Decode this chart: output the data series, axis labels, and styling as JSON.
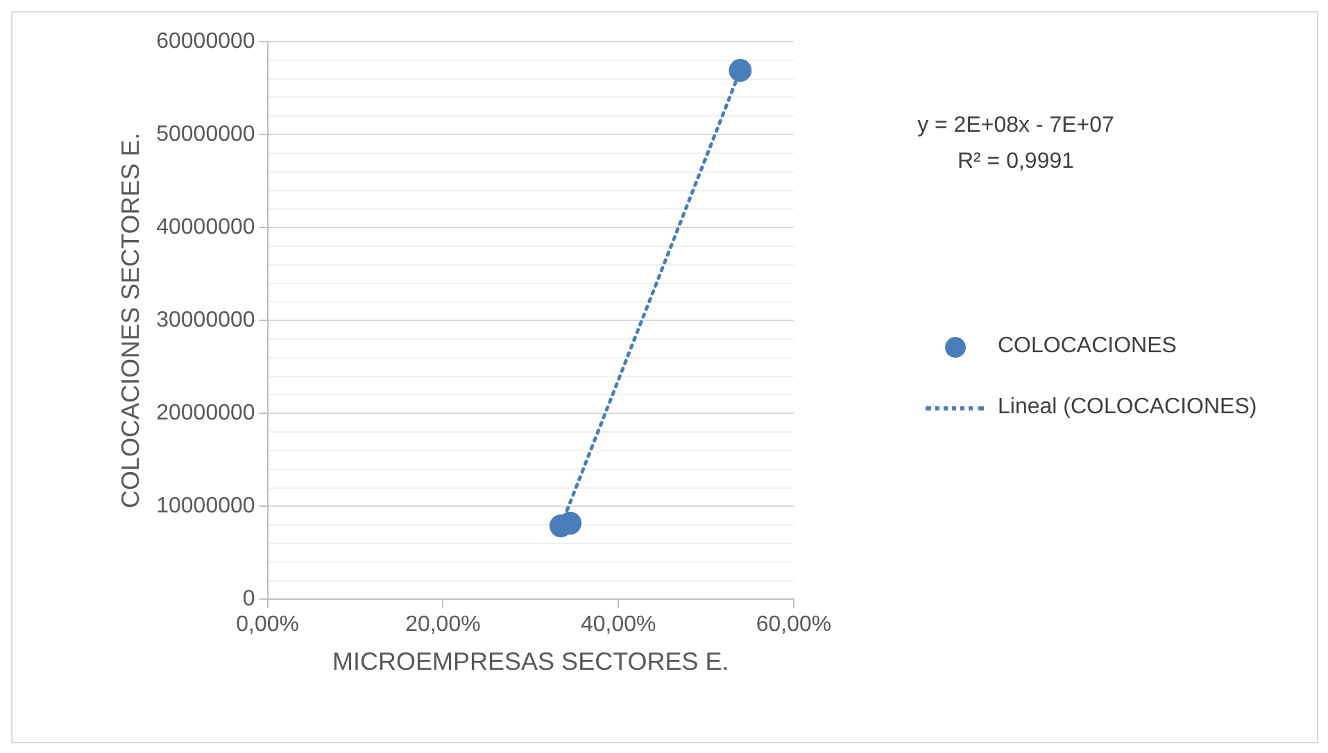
{
  "chart_data": {
    "type": "scatter",
    "xlabel": "MICROEMPRESAS SECTORES E.",
    "ylabel": "COLOCACIONES SECTORES E.",
    "annotations": [
      "y = 2E+08x - 7E+07",
      "R² = 0,9991"
    ],
    "xlim": [
      0,
      0.6
    ],
    "xticks": [
      {
        "value": 0,
        "label": "0,00%"
      },
      {
        "value": 0.2,
        "label": "20,00%"
      },
      {
        "value": 0.4,
        "label": "40,00%"
      },
      {
        "value": 0.6,
        "label": "60,00%"
      }
    ],
    "ylim": [
      0,
      60000000
    ],
    "yticks": [
      0,
      {
        "value": 2000000,
        "label": null
      },
      {
        "value": 4000000,
        "label": null
      },
      {
        "value": 6000000,
        "label": null
      },
      {
        "value": 8000000,
        "label": null
      },
      10000000,
      {
        "value": 12000000,
        "label": null
      },
      {
        "value": 14000000,
        "label": null
      },
      {
        "value": 16000000,
        "label": null
      },
      {
        "value": 18000000,
        "label": null
      },
      20000000,
      {
        "value": 22000000,
        "label": null
      },
      {
        "value": 24000000,
        "label": null
      },
      {
        "value": 26000000,
        "label": null
      },
      {
        "value": 28000000,
        "label": null
      },
      30000000,
      {
        "value": 32000000,
        "label": null
      },
      {
        "value": 34000000,
        "label": null
      },
      {
        "value": 36000000,
        "label": null
      },
      {
        "value": 38000000,
        "label": null
      },
      40000000,
      {
        "value": 42000000,
        "label": null
      },
      {
        "value": 44000000,
        "label": null
      },
      {
        "value": 46000000,
        "label": null
      },
      {
        "value": 48000000,
        "label": null
      },
      50000000,
      {
        "value": 52000000,
        "label": null
      },
      {
        "value": 54000000,
        "label": null
      },
      {
        "value": 56000000,
        "label": null
      },
      {
        "value": 58000000,
        "label": null
      },
      60000000
    ],
    "grid": "y",
    "legend": "right",
    "marker": "circle",
    "series": [
      {
        "name": "COLOCACIONES",
        "type": "scatter",
        "color": "#4a7ebb",
        "x": [
          0.3345,
          0.345,
          0.539
        ],
        "values": [
          7900000,
          8200000,
          56900000
        ]
      },
      {
        "name": "Lineal (COLOCACIONES)",
        "type": "line",
        "color": "#4a7ebb",
        "line_style": "dotted",
        "marker": "none",
        "x": [
          0.3345,
          0.539
        ],
        "values": [
          7900000,
          56900000
        ]
      }
    ]
  }
}
